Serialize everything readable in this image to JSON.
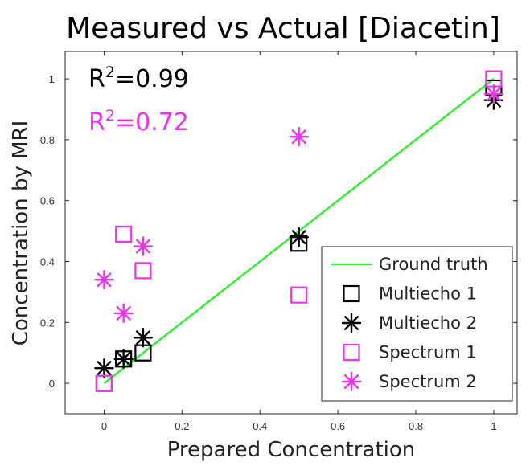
{
  "chart_data": {
    "type": "scatter",
    "title": "Measured vs Actual [Diacetin]",
    "xlabel": "Prepared Concentration",
    "ylabel": "Concentration by MRI",
    "xlim": [
      -0.1,
      1.06
    ],
    "ylim": [
      -0.1,
      1.09
    ],
    "xticks": [
      0,
      0.2,
      0.4,
      0.6,
      0.8,
      1
    ],
    "yticks": [
      0,
      0.2,
      0.4,
      0.6,
      0.8,
      1
    ],
    "xtick_labels": [
      "0",
      "0.2",
      "0.4",
      "0.6",
      "0.8",
      "1"
    ],
    "ytick_labels": [
      "0",
      "0.2",
      "0.4",
      "0.6",
      "0.8",
      "1"
    ],
    "grid": false,
    "legend_position": "bottom-right",
    "annotations": [
      {
        "id": "r2-black",
        "base": "R",
        "sup": "2",
        "value": "=0.99",
        "color": "#000000"
      },
      {
        "id": "r2-magenta",
        "base": "R",
        "sup": "2",
        "value": "=0.72",
        "color": "#ee33ee"
      }
    ],
    "series": [
      {
        "name": "Ground truth",
        "kind": "line",
        "color": "#33ee33",
        "x": [
          0,
          1
        ],
        "y": [
          0,
          1
        ]
      },
      {
        "name": "Multiecho 1",
        "kind": "square",
        "color": "#000000",
        "x": [
          0,
          0.05,
          0.1,
          0.5,
          1
        ],
        "y": [
          0,
          0.08,
          0.1,
          0.46,
          0.97
        ]
      },
      {
        "name": "Multiecho 2",
        "kind": "asterisk",
        "color": "#000000",
        "x": [
          0,
          0.05,
          0.1,
          0.5,
          1
        ],
        "y": [
          0.05,
          0.08,
          0.15,
          0.48,
          0.93
        ]
      },
      {
        "name": "Spectrum 1",
        "kind": "square",
        "color": "#ee33ee",
        "x": [
          0,
          0.05,
          0.1,
          0.5,
          1
        ],
        "y": [
          0,
          0.49,
          0.37,
          0.29,
          1.0
        ]
      },
      {
        "name": "Spectrum 2",
        "kind": "asterisk",
        "color": "#ee33ee",
        "x": [
          0,
          0.05,
          0.1,
          0.5,
          1
        ],
        "y": [
          0.34,
          0.23,
          0.45,
          0.81,
          0.95
        ]
      }
    ]
  }
}
